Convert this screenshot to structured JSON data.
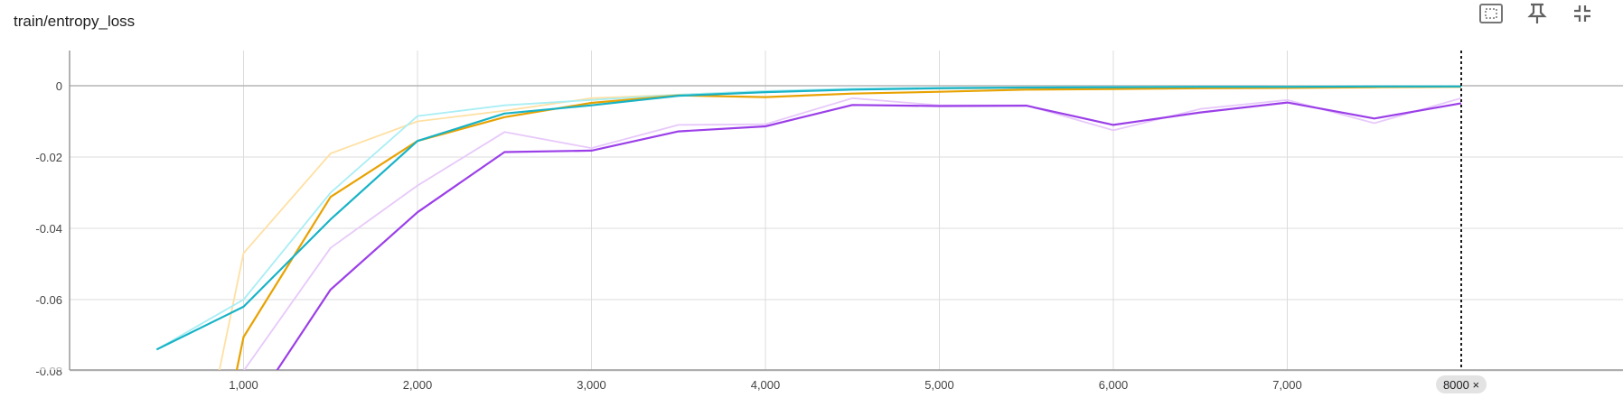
{
  "card": {
    "title": "train/entropy_loss"
  },
  "toolbar": {
    "icons": [
      "fit-domain-icon",
      "pin-icon",
      "collapse-icon"
    ]
  },
  "cursor": {
    "label": "8000 ×"
  },
  "chart_data": {
    "type": "line",
    "title": "train/entropy_loss",
    "xlabel": "",
    "ylabel": "",
    "xlim": [
      0,
      9000
    ],
    "ylim": [
      -0.08,
      0.01
    ],
    "grid": true,
    "x_ticks": [
      1000,
      2000,
      3000,
      4000,
      5000,
      6000,
      7000
    ],
    "x_tick_labels": [
      "1,000",
      "2,000",
      "3,000",
      "4,000",
      "5,000",
      "6,000",
      "7,000"
    ],
    "y_ticks": [
      0,
      -0.02,
      -0.04,
      -0.06,
      -0.08
    ],
    "y_tick_labels": [
      "0",
      "-0.02",
      "-0.04",
      "-0.06",
      "-0.08"
    ],
    "cursor_x": 8000,
    "series": [
      {
        "color": "#FFE0A3",
        "role": "raw",
        "points": [
          [
            860,
            -0.08
          ],
          [
            1000,
            -0.047
          ],
          [
            1500,
            -0.019
          ],
          [
            2000,
            -0.01
          ],
          [
            2500,
            -0.007
          ],
          [
            3000,
            -0.0035
          ],
          [
            3500,
            -0.0025
          ],
          [
            4000,
            -0.0015
          ],
          [
            4500,
            -0.001
          ],
          [
            5000,
            -0.0008
          ],
          [
            5500,
            -0.0006
          ],
          [
            6000,
            -0.0004
          ],
          [
            6500,
            -0.0003
          ],
          [
            7000,
            -0.0002
          ],
          [
            7500,
            -0.0002
          ],
          [
            8000,
            -0.0002
          ]
        ]
      },
      {
        "color": "#A9EEF4",
        "role": "raw",
        "points": [
          [
            500,
            -0.074
          ],
          [
            1000,
            -0.06
          ],
          [
            1500,
            -0.03
          ],
          [
            2000,
            -0.0085
          ],
          [
            2500,
            -0.0055
          ],
          [
            3000,
            -0.004
          ],
          [
            3500,
            -0.0025
          ],
          [
            4000,
            -0.0015
          ],
          [
            4500,
            -0.0008
          ],
          [
            5000,
            -0.0005
          ],
          [
            5500,
            -0.0004
          ],
          [
            6000,
            -0.0003
          ],
          [
            6500,
            -0.0002
          ],
          [
            7000,
            -0.0002
          ],
          [
            7500,
            -0.0001
          ],
          [
            8000,
            -0.0001
          ]
        ]
      },
      {
        "color": "#E7C9FA",
        "role": "raw",
        "points": [
          [
            1000,
            -0.08
          ],
          [
            1500,
            -0.0455
          ],
          [
            2000,
            -0.028
          ],
          [
            2500,
            -0.013
          ],
          [
            3000,
            -0.0175
          ],
          [
            3500,
            -0.011
          ],
          [
            4000,
            -0.0108
          ],
          [
            4500,
            -0.0035
          ],
          [
            5000,
            -0.0055
          ],
          [
            5500,
            -0.0055
          ],
          [
            6000,
            -0.0125
          ],
          [
            6500,
            -0.0065
          ],
          [
            7000,
            -0.004
          ],
          [
            7500,
            -0.0105
          ],
          [
            8000,
            -0.0035
          ]
        ]
      },
      {
        "color": "#E8A202",
        "role": "smoothed",
        "points": [
          [
            960,
            -0.08
          ],
          [
            1000,
            -0.0705
          ],
          [
            1500,
            -0.0312
          ],
          [
            2000,
            -0.0155
          ],
          [
            2500,
            -0.0088
          ],
          [
            3000,
            -0.0048
          ],
          [
            3500,
            -0.0027
          ],
          [
            4000,
            -0.0032
          ],
          [
            4500,
            -0.0022
          ],
          [
            5000,
            -0.0017
          ],
          [
            5500,
            -0.0011
          ],
          [
            6000,
            -0.0009
          ],
          [
            6500,
            -0.0007
          ],
          [
            7000,
            -0.0006
          ],
          [
            7500,
            -0.0004
          ],
          [
            8000,
            -0.0003
          ]
        ]
      },
      {
        "color": "#18B3C6",
        "role": "smoothed",
        "points": [
          [
            500,
            -0.074
          ],
          [
            1000,
            -0.062
          ],
          [
            1500,
            -0.0375
          ],
          [
            2000,
            -0.0155
          ],
          [
            2500,
            -0.0078
          ],
          [
            3000,
            -0.0055
          ],
          [
            3500,
            -0.0028
          ],
          [
            4000,
            -0.0018
          ],
          [
            4500,
            -0.0011
          ],
          [
            5000,
            -0.0007
          ],
          [
            5500,
            -0.0005
          ],
          [
            6000,
            -0.0004
          ],
          [
            6500,
            -0.0003
          ],
          [
            7000,
            -0.0003
          ],
          [
            7500,
            -0.0002
          ],
          [
            8000,
            -0.0002
          ]
        ]
      },
      {
        "color": "#9B3FE8",
        "role": "smoothed",
        "points": [
          [
            1190,
            -0.08
          ],
          [
            1500,
            -0.0572
          ],
          [
            2000,
            -0.0355
          ],
          [
            2500,
            -0.0186
          ],
          [
            3000,
            -0.0182
          ],
          [
            3500,
            -0.0128
          ],
          [
            4000,
            -0.0114
          ],
          [
            4500,
            -0.0054
          ],
          [
            5000,
            -0.0057
          ],
          [
            5500,
            -0.0056
          ],
          [
            6000,
            -0.011
          ],
          [
            6500,
            -0.0075
          ],
          [
            7000,
            -0.0047
          ],
          [
            7500,
            -0.0092
          ],
          [
            8000,
            -0.0049
          ]
        ]
      }
    ]
  }
}
